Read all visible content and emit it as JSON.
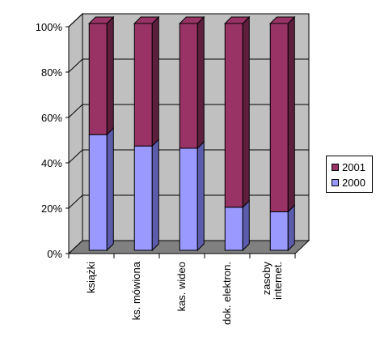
{
  "chart_data": {
    "type": "bar",
    "stacked": true,
    "percent": true,
    "three_d": true,
    "categories": [
      "książki",
      "ks. mówiona",
      "kas. wideo",
      "dok. elektron.",
      "zasoby internet."
    ],
    "category_label_lines": [
      [
        "książki"
      ],
      [
        "ks. mówiona"
      ],
      [
        "kas. wideo"
      ],
      [
        "dok. elektron."
      ],
      [
        "zasoby",
        "internet."
      ]
    ],
    "series": [
      {
        "name": "2000",
        "values": [
          51,
          46,
          45,
          19,
          17
        ],
        "color": "#9999ff",
        "side_color": "#5c5cad"
      },
      {
        "name": "2001",
        "values": [
          49,
          54,
          55,
          81,
          83
        ],
        "color": "#993366",
        "side_color": "#5e1f3f"
      }
    ],
    "yticks": [
      "0%",
      "20%",
      "40%",
      "60%",
      "80%",
      "100%"
    ],
    "ylim": [
      0,
      100
    ],
    "grid": true,
    "legend": "right",
    "colors": {
      "wall": "#c0c0c0",
      "floor": "#808080",
      "grid": "#000000"
    }
  }
}
